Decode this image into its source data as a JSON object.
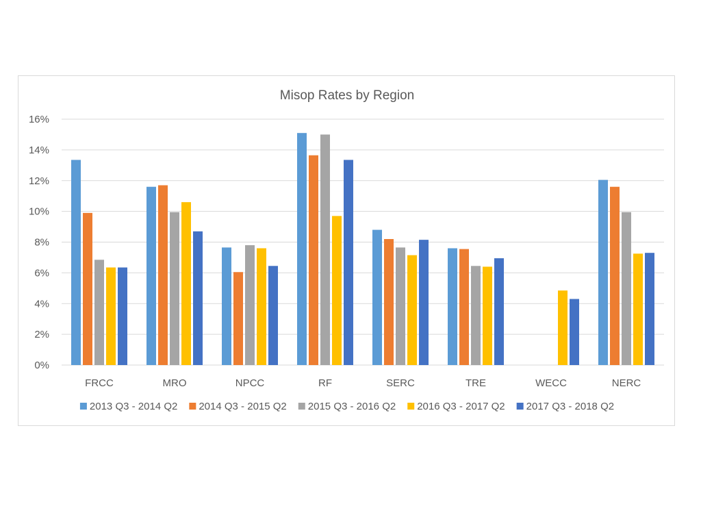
{
  "chart_data": {
    "type": "bar",
    "title": "Misop Rates by Region",
    "xlabel": "",
    "ylabel": "",
    "ylim": [
      0,
      0.16
    ],
    "yticks": [
      0,
      0.02,
      0.04,
      0.06,
      0.08,
      0.1,
      0.12,
      0.14,
      0.16
    ],
    "ytick_labels": [
      "0%",
      "2%",
      "4%",
      "6%",
      "8%",
      "10%",
      "12%",
      "14%",
      "16%"
    ],
    "grid": "horizontal",
    "legend_position": "bottom",
    "categories": [
      "FRCC",
      "MRO",
      "NPCC",
      "RF",
      "SERC",
      "TRE",
      "WECC",
      "NERC"
    ],
    "series": [
      {
        "name": "2013 Q3 - 2014 Q2",
        "color": "#5b9bd5",
        "values": [
          0.1335,
          0.116,
          0.0765,
          0.151,
          0.088,
          0.076,
          null,
          0.1205
        ]
      },
      {
        "name": "2014 Q3 - 2015 Q2",
        "color": "#ed7d31",
        "values": [
          0.099,
          0.117,
          0.0605,
          0.1365,
          0.082,
          0.0755,
          null,
          0.116
        ]
      },
      {
        "name": "2015 Q3 - 2016 Q2",
        "color": "#a5a5a5",
        "values": [
          0.0685,
          0.0995,
          0.078,
          0.15,
          0.0765,
          0.0645,
          null,
          0.0995
        ]
      },
      {
        "name": "2016 Q3 - 2017 Q2",
        "color": "#ffc000",
        "values": [
          0.0635,
          0.106,
          0.076,
          0.097,
          0.0715,
          0.064,
          0.0485,
          0.0725
        ]
      },
      {
        "name": "2017 Q3 - 2018 Q2",
        "color": "#4472c4",
        "values": [
          0.0635,
          0.087,
          0.0645,
          0.1335,
          0.0815,
          0.0695,
          0.043,
          0.073
        ]
      }
    ]
  },
  "colors": {
    "gridline": "#d9d9d9",
    "text": "#595959",
    "border": "#d9d9d9"
  }
}
